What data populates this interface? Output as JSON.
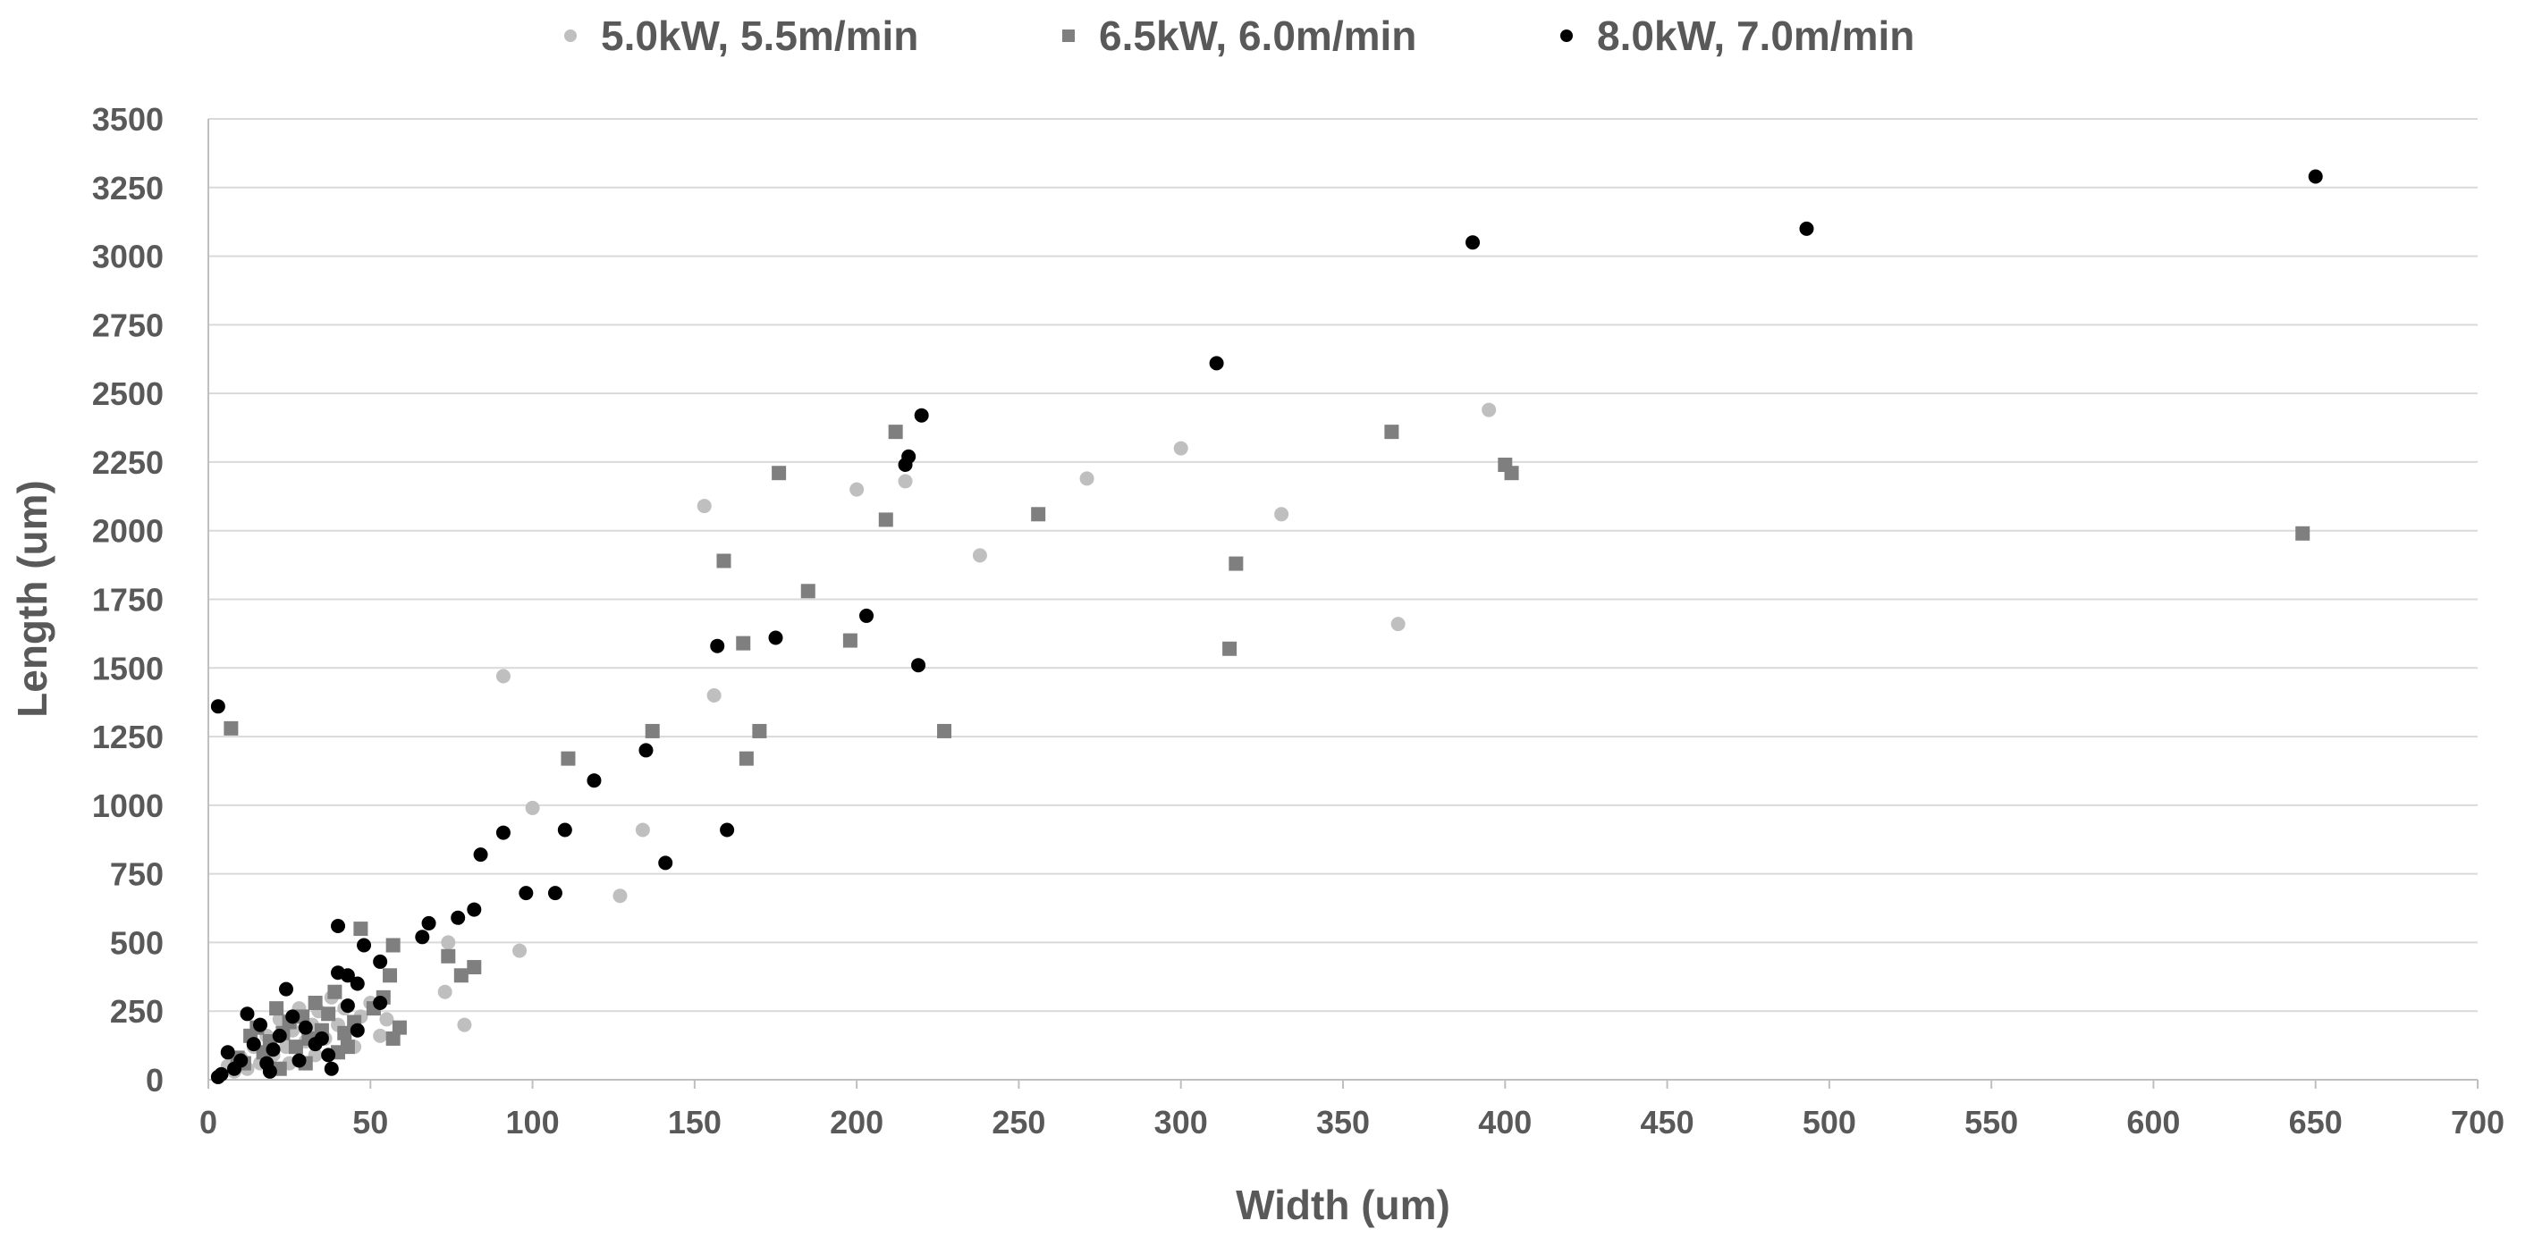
{
  "chart_data": {
    "type": "scatter",
    "title": "",
    "xlabel": "Width (um)",
    "ylabel": "Length (um)",
    "xlim": [
      0,
      700
    ],
    "ylim": [
      0,
      3500
    ],
    "xticks": [
      0,
      50,
      100,
      150,
      200,
      250,
      300,
      350,
      400,
      450,
      500,
      550,
      600,
      650,
      700
    ],
    "yticks": [
      0,
      250,
      500,
      750,
      1000,
      1250,
      1500,
      1750,
      2000,
      2250,
      2500,
      2750,
      3000,
      3250,
      3500
    ],
    "grid": "horizontal",
    "legend_position": "top",
    "series": [
      {
        "name": "5.0kW, 5.5m/min",
        "marker": "circle",
        "color": "#bfbfbf",
        "points": [
          [
            153,
            2090
          ],
          [
            200,
            2150
          ],
          [
            215,
            2180
          ],
          [
            238,
            1910
          ],
          [
            271,
            2190
          ],
          [
            300,
            2300
          ],
          [
            331,
            2060
          ],
          [
            395,
            2440
          ],
          [
            367,
            1660
          ],
          [
            91,
            1470
          ],
          [
            156,
            1400
          ],
          [
            100,
            990
          ],
          [
            134,
            910
          ],
          [
            127,
            670
          ],
          [
            96,
            470
          ],
          [
            74,
            500
          ],
          [
            73,
            320
          ],
          [
            79,
            200
          ],
          [
            55,
            220
          ],
          [
            53,
            160
          ],
          [
            50,
            280
          ],
          [
            47,
            230
          ],
          [
            42,
            260
          ],
          [
            40,
            200
          ],
          [
            38,
            300
          ],
          [
            36,
            150
          ],
          [
            34,
            250
          ],
          [
            32,
            200
          ],
          [
            30,
            140
          ],
          [
            28,
            260
          ],
          [
            26,
            180
          ],
          [
            24,
            120
          ],
          [
            22,
            220
          ],
          [
            20,
            90
          ],
          [
            18,
            160
          ],
          [
            16,
            60
          ],
          [
            14,
            120
          ],
          [
            12,
            40
          ],
          [
            10,
            80
          ],
          [
            8,
            30
          ],
          [
            6,
            50
          ],
          [
            45,
            120
          ],
          [
            33,
            90
          ],
          [
            25,
            60
          ]
        ]
      },
      {
        "name": "6.5kW, 6.0m/min",
        "marker": "square",
        "color": "#7f7f7f",
        "points": [
          [
            7,
            1280
          ],
          [
            212,
            2360
          ],
          [
            176,
            2210
          ],
          [
            209,
            2040
          ],
          [
            159,
            1890
          ],
          [
            185,
            1780
          ],
          [
            256,
            2060
          ],
          [
            165,
            1590
          ],
          [
            198,
            1600
          ],
          [
            365,
            2360
          ],
          [
            400,
            2240
          ],
          [
            402,
            2210
          ],
          [
            317,
            1880
          ],
          [
            315,
            1570
          ],
          [
            646,
            1990
          ],
          [
            137,
            1270
          ],
          [
            111,
            1170
          ],
          [
            170,
            1270
          ],
          [
            166,
            1170
          ],
          [
            227,
            1270
          ],
          [
            82,
            410
          ],
          [
            78,
            380
          ],
          [
            74,
            450
          ],
          [
            57,
            490
          ],
          [
            56,
            380
          ],
          [
            59,
            190
          ],
          [
            57,
            150
          ],
          [
            47,
            550
          ],
          [
            54,
            300
          ],
          [
            51,
            260
          ],
          [
            45,
            210
          ],
          [
            42,
            170
          ],
          [
            43,
            120
          ],
          [
            39,
            320
          ],
          [
            37,
            240
          ],
          [
            35,
            180
          ],
          [
            33,
            280
          ],
          [
            31,
            150
          ],
          [
            29,
            230
          ],
          [
            27,
            120
          ],
          [
            25,
            210
          ],
          [
            23,
            170
          ],
          [
            21,
            260
          ],
          [
            19,
            140
          ],
          [
            17,
            100
          ],
          [
            15,
            190
          ],
          [
            13,
            160
          ],
          [
            11,
            60
          ],
          [
            9,
            80
          ],
          [
            30,
            60
          ],
          [
            40,
            100
          ],
          [
            22,
            40
          ]
        ]
      },
      {
        "name": "8.0kW, 7.0m/min",
        "marker": "circle",
        "color": "#000000",
        "points": [
          [
            3,
            1360
          ],
          [
            390,
            3050
          ],
          [
            493,
            3100
          ],
          [
            650,
            3290
          ],
          [
            311,
            2610
          ],
          [
            220,
            2420
          ],
          [
            216,
            2270
          ],
          [
            215,
            2240
          ],
          [
            203,
            1690
          ],
          [
            175,
            1610
          ],
          [
            157,
            1580
          ],
          [
            219,
            1510
          ],
          [
            135,
            1200
          ],
          [
            119,
            1090
          ],
          [
            91,
            900
          ],
          [
            84,
            820
          ],
          [
            110,
            910
          ],
          [
            160,
            910
          ],
          [
            141,
            790
          ],
          [
            98,
            680
          ],
          [
            107,
            680
          ],
          [
            82,
            620
          ],
          [
            77,
            590
          ],
          [
            68,
            570
          ],
          [
            66,
            520
          ],
          [
            48,
            490
          ],
          [
            40,
            560
          ],
          [
            53,
            430
          ],
          [
            43,
            380
          ],
          [
            46,
            350
          ],
          [
            40,
            390
          ],
          [
            53,
            280
          ],
          [
            46,
            180
          ],
          [
            43,
            270
          ],
          [
            37,
            90
          ],
          [
            38,
            40
          ],
          [
            33,
            130
          ],
          [
            30,
            190
          ],
          [
            24,
            330
          ],
          [
            26,
            230
          ],
          [
            22,
            160
          ],
          [
            20,
            110
          ],
          [
            18,
            60
          ],
          [
            16,
            200
          ],
          [
            14,
            130
          ],
          [
            12,
            240
          ],
          [
            10,
            70
          ],
          [
            8,
            40
          ],
          [
            6,
            100
          ],
          [
            4,
            20
          ],
          [
            3,
            10
          ],
          [
            28,
            70
          ],
          [
            35,
            150
          ],
          [
            19,
            30
          ]
        ]
      }
    ]
  }
}
